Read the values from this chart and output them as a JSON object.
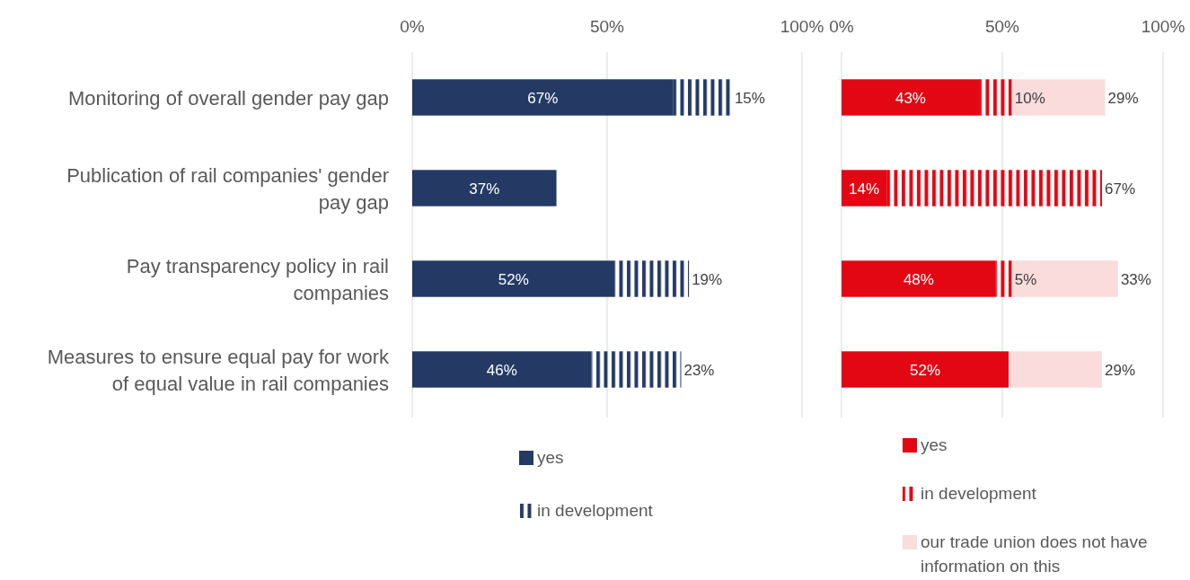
{
  "chart_data": [
    {
      "type": "bar",
      "orientation": "horizontal",
      "stacked": true,
      "categories": [
        "Monitoring of overall gender pay gap",
        "Publication of rail companies' gender pay gap",
        "Pay transparency policy in rail companies",
        "Measures to ensure equal pay for work of equal value in rail companies"
      ],
      "series": [
        {
          "name": "yes",
          "color": "#243a64",
          "values": [
            67,
            37,
            52,
            46
          ],
          "value_labels": [
            "67%",
            "37%",
            "52%",
            "46%"
          ]
        },
        {
          "name": "in development",
          "color": "#243a64",
          "values": [
            15,
            null,
            19,
            23
          ],
          "value_labels": [
            "15%",
            null,
            "19%",
            "23%"
          ]
        }
      ],
      "xlim": [
        0,
        100
      ],
      "xticks": [
        {
          "value": 0,
          "label": "0%"
        },
        {
          "value": 50,
          "label": "50%"
        },
        {
          "value": 100,
          "label": "100%"
        }
      ],
      "grid": "x",
      "legend": "bottom"
    },
    {
      "type": "bar",
      "orientation": "horizontal",
      "stacked": true,
      "categories": [
        null,
        null,
        null,
        null
      ],
      "series": [
        {
          "name": "yes",
          "color": "#e30613",
          "values": [
            43,
            14,
            48,
            52
          ],
          "value_labels": [
            "43%",
            "14%",
            "48%",
            "52%"
          ]
        },
        {
          "name": "in development",
          "color": "#e30613",
          "values": [
            10,
            67,
            5,
            null
          ],
          "value_labels": [
            "10%",
            "67%",
            "5%",
            null
          ]
        },
        {
          "name": "our trade union does not have information on this",
          "color": "#fadcdc",
          "values": [
            29,
            null,
            33,
            29
          ],
          "value_labels": [
            "29%",
            null,
            "33%",
            "29%"
          ]
        }
      ],
      "xlim": [
        0,
        100
      ],
      "xticks": [
        {
          "value": 0,
          "label": "0%"
        },
        {
          "value": 50,
          "label": "50%"
        },
        {
          "value": 100,
          "label": "100%"
        }
      ],
      "grid": "x",
      "legend": "bottom",
      "tick_labels": "x"
    }
  ]
}
